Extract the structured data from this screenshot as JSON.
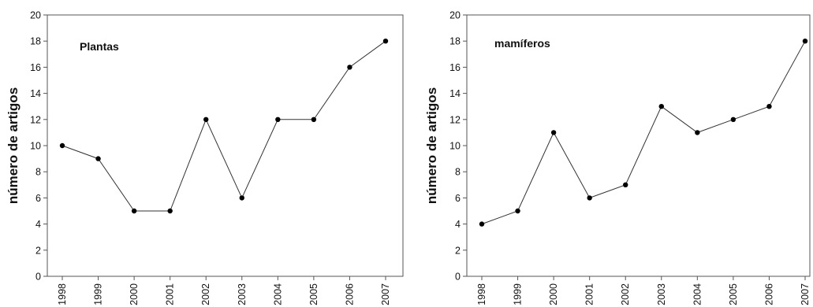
{
  "chart_data": [
    {
      "type": "line",
      "annotation": "Plantas",
      "ylabel": "número de artigos",
      "xlabel": "",
      "categories": [
        "1998",
        "1999",
        "2000",
        "2001",
        "2002",
        "2003",
        "2004",
        "2005",
        "2006",
        "2007"
      ],
      "values": [
        10,
        9,
        5,
        5,
        12,
        6,
        12,
        12,
        16,
        18
      ],
      "ylim": [
        0,
        20
      ],
      "yticks": [
        "0",
        "2",
        "4",
        "6",
        "8",
        "10",
        "12",
        "14",
        "16",
        "18",
        "20"
      ],
      "grid": false,
      "line_color": "#333333",
      "marker_color": "#000000"
    },
    {
      "type": "line",
      "annotation": "mamíferos",
      "ylabel": "número de artigos",
      "xlabel": "",
      "categories": [
        "1998",
        "1999",
        "2000",
        "2001",
        "2002",
        "2003",
        "2004",
        "2005",
        "2006",
        "2007"
      ],
      "values": [
        4,
        5,
        11,
        6,
        7,
        13,
        11,
        12,
        13,
        18
      ],
      "ylim": [
        0,
        20
      ],
      "yticks": [
        "0",
        "2",
        "4",
        "6",
        "8",
        "10",
        "12",
        "14",
        "16",
        "18",
        "20"
      ],
      "grid": false,
      "line_color": "#333333",
      "marker_color": "#000000"
    }
  ]
}
